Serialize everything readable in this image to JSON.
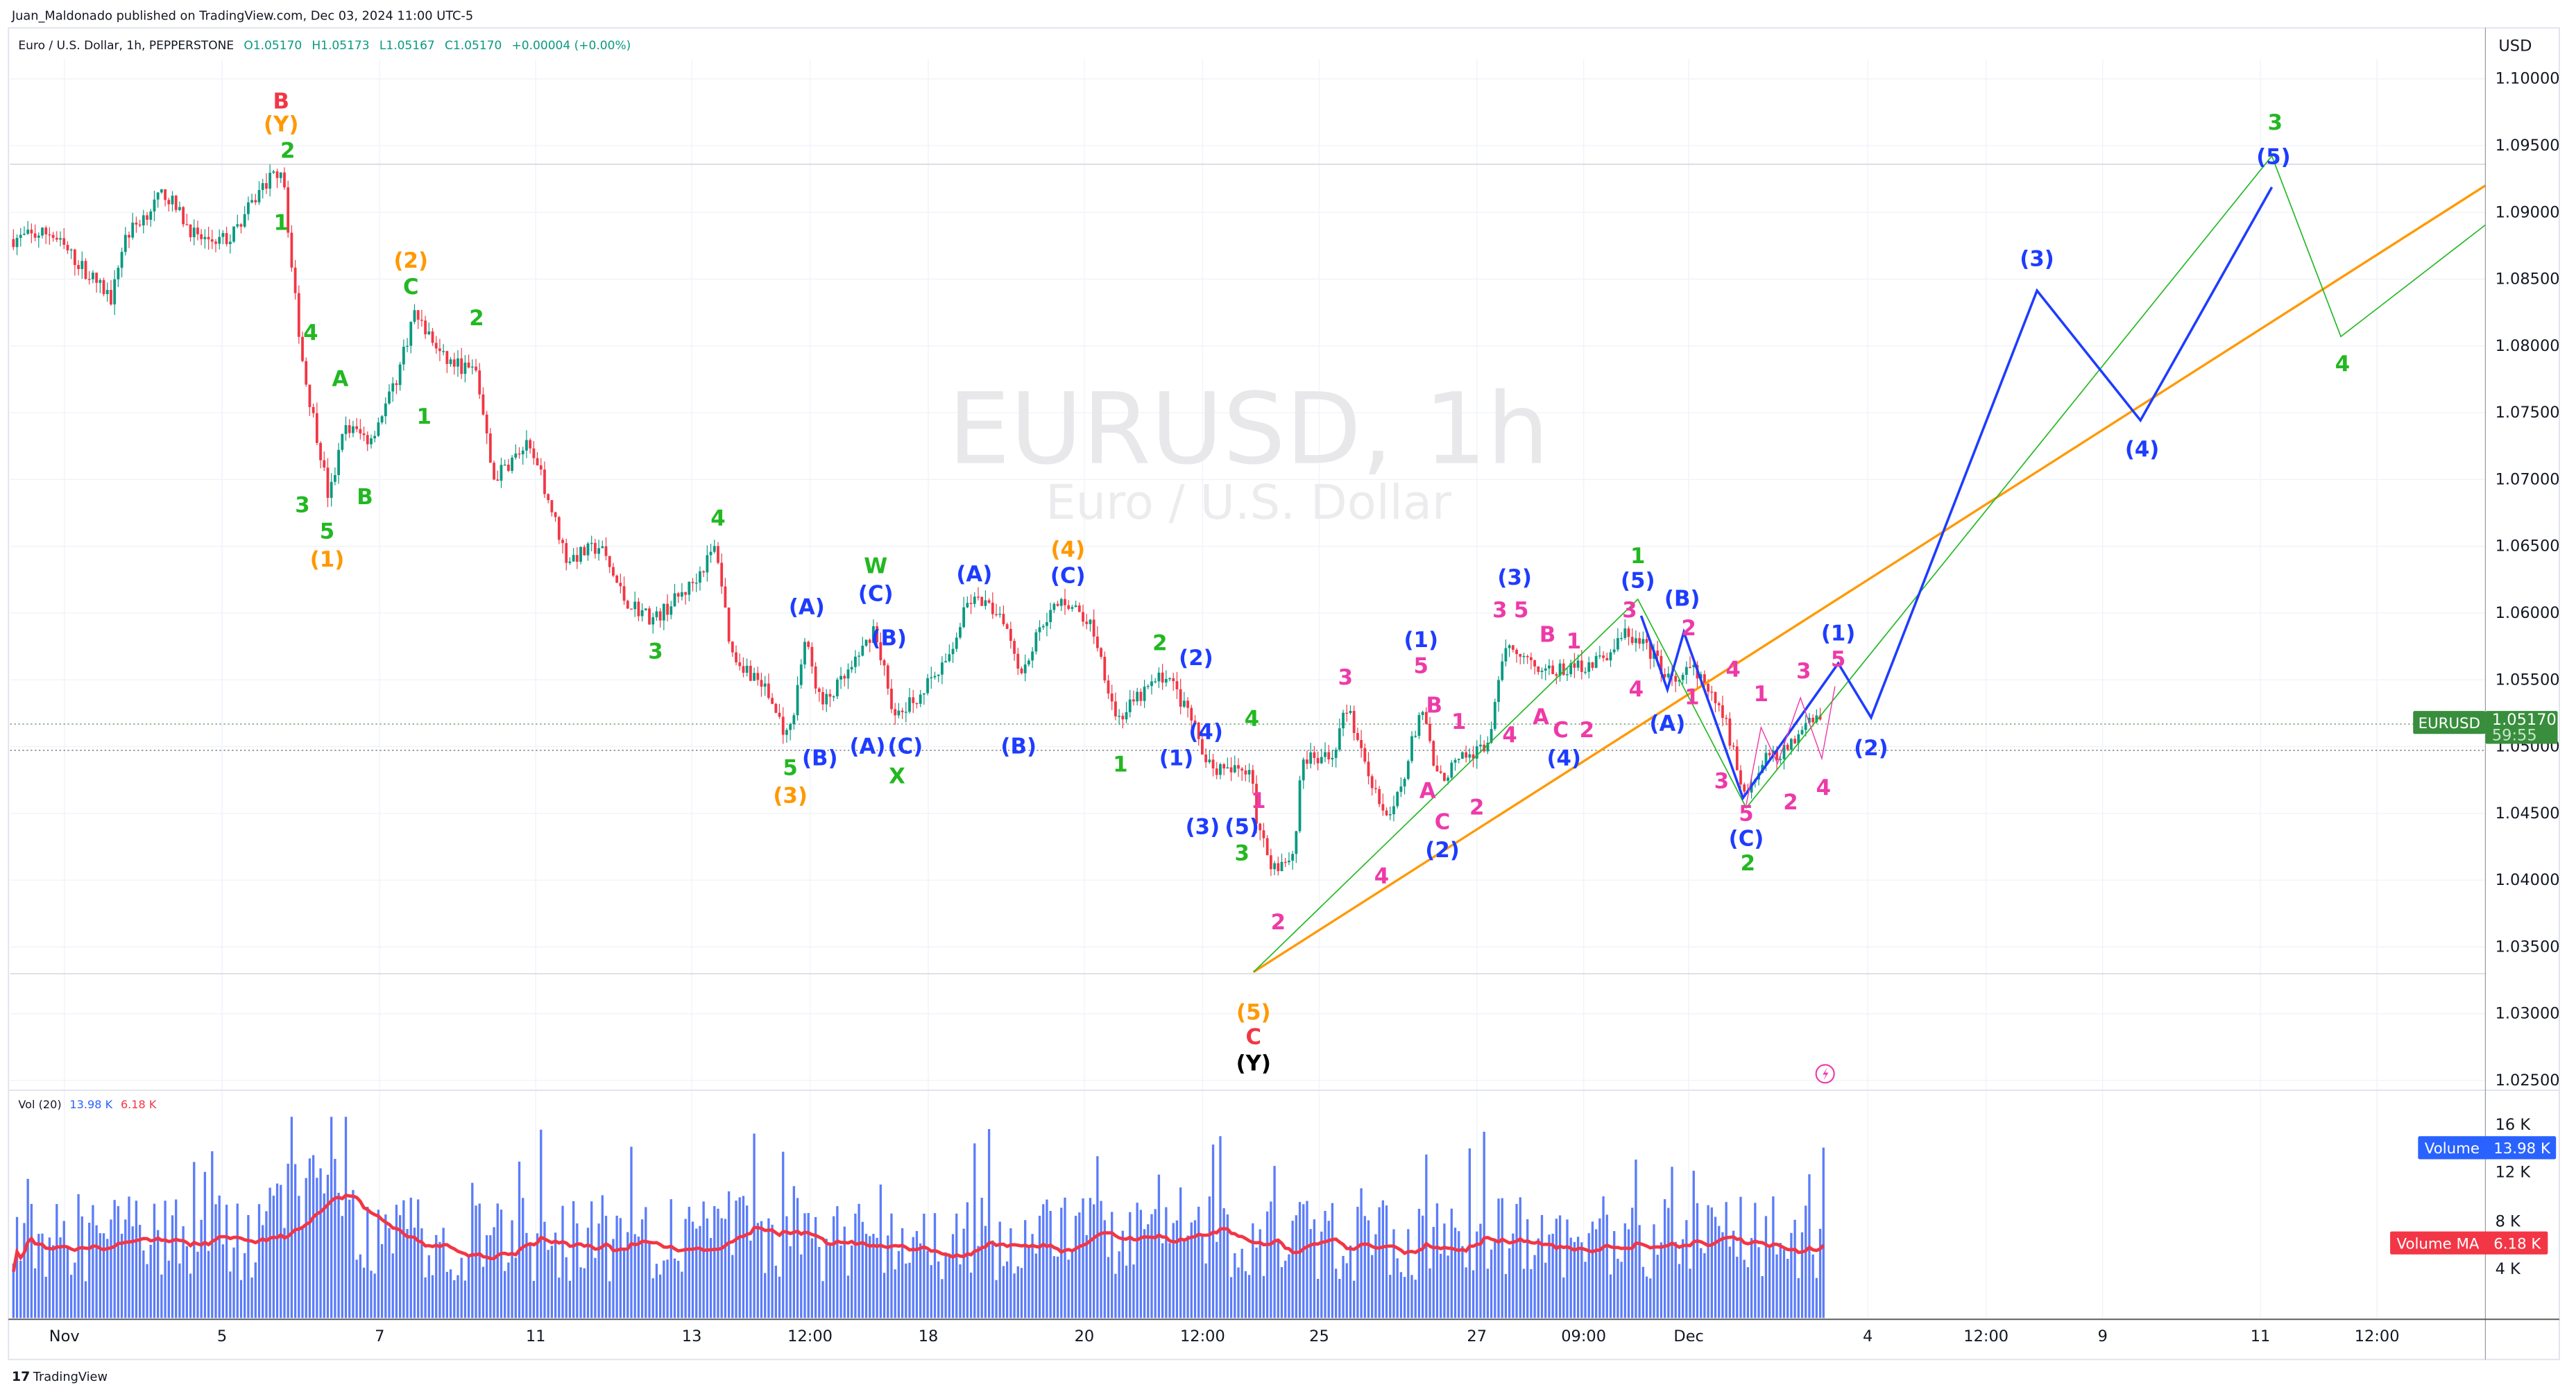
{
  "header": {
    "published": "Juan_Maldonado published on TradingView.com, Dec 03, 2024 11:00 UTC-5",
    "symbol_desc": "Euro / U.S. Dollar, 1h, PEPPERSTONE",
    "open": "O1.05170",
    "high": "H1.05173",
    "low": "L1.05167",
    "close": "C1.05170",
    "change": "+0.00004 (+0.00%)"
  },
  "watermark": {
    "symbol": "EURUSD, 1h",
    "name": "Euro / U.S. Dollar"
  },
  "price_axis": {
    "currency": "USD",
    "labels": [
      "1.10000",
      "1.09500",
      "1.09000",
      "1.08500",
      "1.08000",
      "1.07500",
      "1.07000",
      "1.06500",
      "1.06000",
      "1.05500",
      "1.05000",
      "1.04500",
      "1.04000",
      "1.03500",
      "1.03000",
      "1.02500"
    ]
  },
  "last_price_badge": {
    "symbol": "EURUSD",
    "price": "1.05170",
    "countdown": "59:55",
    "color": "#388e3c"
  },
  "time_axis": {
    "labels": [
      "Nov",
      "5",
      "7",
      "11",
      "13",
      "12:00",
      "18",
      "20",
      "12:00",
      "25",
      "27",
      "09:00",
      "Dec",
      "4",
      "12:00",
      "9",
      "11",
      "12:00"
    ]
  },
  "volume": {
    "legend_title": "Vol (20)",
    "legend_volume": "13.98 K",
    "legend_ma": "6.18 K",
    "axis_labels": [
      "16 K",
      "12 K",
      "8 K",
      "4 K"
    ],
    "badge_volume_label": "Volume",
    "badge_volume_value": "13.98 K",
    "badge_ma_label": "Volume MA",
    "badge_ma_value": "6.18 K",
    "bar_color": "#5b7cfa",
    "ma_color": "#f23645"
  },
  "footer": {
    "brand": "TradingView"
  },
  "colors": {
    "up": "#089981",
    "down": "#f23645",
    "red": "#f23645",
    "orange": "#ff9800",
    "green": "#22b822",
    "blue": "#1e3cff",
    "magenta": "#ee3aa8",
    "black": "#000000"
  },
  "wave_labels": [
    {
      "text": "B",
      "color": "red"
    },
    {
      "text": "(Y)",
      "color": "orange"
    },
    {
      "text": "2",
      "color": "green"
    },
    {
      "text": "1",
      "color": "green"
    },
    {
      "text": "4",
      "color": "green"
    },
    {
      "text": "A",
      "color": "green"
    },
    {
      "text": "(2)",
      "color": "orange"
    },
    {
      "text": "C",
      "color": "green"
    },
    {
      "text": "2",
      "color": "green"
    },
    {
      "text": "1",
      "color": "green"
    },
    {
      "text": "3",
      "color": "green"
    },
    {
      "text": "B",
      "color": "green"
    },
    {
      "text": "5",
      "color": "green"
    },
    {
      "text": "(1)",
      "color": "orange"
    },
    {
      "text": "4",
      "color": "green"
    },
    {
      "text": "3",
      "color": "green"
    },
    {
      "text": "(A)",
      "color": "blue"
    },
    {
      "text": "W",
      "color": "green"
    },
    {
      "text": "(C)",
      "color": "blue"
    },
    {
      "text": "(A)",
      "color": "blue"
    },
    {
      "text": "(4)",
      "color": "orange"
    },
    {
      "text": "(C)",
      "color": "blue"
    },
    {
      "text": "(B)",
      "color": "blue"
    },
    {
      "text": "2",
      "color": "green"
    },
    {
      "text": "(2)",
      "color": "blue"
    },
    {
      "text": "5",
      "color": "green"
    },
    {
      "text": "(3)",
      "color": "orange"
    },
    {
      "text": "(B)",
      "color": "blue"
    },
    {
      "text": "(A)",
      "color": "blue"
    },
    {
      "text": "(C)",
      "color": "blue"
    },
    {
      "text": "X",
      "color": "green"
    },
    {
      "text": "(B)",
      "color": "blue"
    },
    {
      "text": "1",
      "color": "green"
    },
    {
      "text": "(1)",
      "color": "blue"
    },
    {
      "text": "(4)",
      "color": "blue"
    },
    {
      "text": "4",
      "color": "green"
    },
    {
      "text": "(3)",
      "color": "blue"
    },
    {
      "text": "(5)",
      "color": "blue"
    },
    {
      "text": "3",
      "color": "green"
    },
    {
      "text": "1",
      "color": "magenta"
    },
    {
      "text": "2",
      "color": "magenta"
    },
    {
      "text": "(5)",
      "color": "orange"
    },
    {
      "text": "C",
      "color": "red"
    },
    {
      "text": "(Y)",
      "color": "black"
    },
    {
      "text": "3",
      "color": "magenta"
    },
    {
      "text": "(1)",
      "color": "blue"
    },
    {
      "text": "5",
      "color": "magenta"
    },
    {
      "text": "B",
      "color": "magenta"
    },
    {
      "text": "1",
      "color": "magenta"
    },
    {
      "text": "A",
      "color": "magenta"
    },
    {
      "text": "C",
      "color": "magenta"
    },
    {
      "text": "(2)",
      "color": "blue"
    },
    {
      "text": "2",
      "color": "magenta"
    },
    {
      "text": "4",
      "color": "magenta"
    },
    {
      "text": "4",
      "color": "magenta"
    },
    {
      "text": "(3)",
      "color": "blue"
    },
    {
      "text": "3",
      "color": "magenta"
    },
    {
      "text": "5",
      "color": "magenta"
    },
    {
      "text": "B",
      "color": "magenta"
    },
    {
      "text": "1",
      "color": "magenta"
    },
    {
      "text": "A",
      "color": "magenta"
    },
    {
      "text": "C",
      "color": "magenta"
    },
    {
      "text": "2",
      "color": "magenta"
    },
    {
      "text": "(4)",
      "color": "blue"
    },
    {
      "text": "1",
      "color": "green"
    },
    {
      "text": "(5)",
      "color": "blue"
    },
    {
      "text": "3",
      "color": "magenta"
    },
    {
      "text": "4",
      "color": "magenta"
    },
    {
      "text": "(B)",
      "color": "blue"
    },
    {
      "text": "2",
      "color": "magenta"
    },
    {
      "text": "1",
      "color": "magenta"
    },
    {
      "text": "(A)",
      "color": "blue"
    },
    {
      "text": "4",
      "color": "magenta"
    },
    {
      "text": "1",
      "color": "magenta"
    },
    {
      "text": "3",
      "color": "magenta"
    },
    {
      "text": "5",
      "color": "magenta"
    },
    {
      "text": "(C)",
      "color": "blue"
    },
    {
      "text": "2",
      "color": "green"
    },
    {
      "text": "2",
      "color": "magenta"
    },
    {
      "text": "3",
      "color": "magenta"
    },
    {
      "text": "4",
      "color": "magenta"
    },
    {
      "text": "(1)",
      "color": "blue"
    },
    {
      "text": "5",
      "color": "magenta"
    },
    {
      "text": "(2)",
      "color": "blue"
    },
    {
      "text": "(3)",
      "color": "blue"
    },
    {
      "text": "(4)",
      "color": "blue"
    },
    {
      "text": "(5)",
      "color": "blue"
    },
    {
      "text": "3",
      "color": "green"
    },
    {
      "text": "4",
      "color": "green"
    }
  ],
  "chart_data": {
    "type": "candlestick",
    "title": "EURUSD, 1h",
    "ylim": [
      1.02,
      1.105
    ],
    "y_ticks": [
      1.1,
      1.095,
      1.09,
      1.085,
      1.08,
      1.075,
      1.07,
      1.065,
      1.06,
      1.055,
      1.05,
      1.045,
      1.04,
      1.035,
      1.03,
      1.025
    ],
    "x_ticks": [
      "Nov",
      "5",
      "7",
      "11",
      "13",
      "12:00",
      "18",
      "20",
      "12:00",
      "25",
      "27",
      "09:00",
      "Dec",
      "4",
      "12:00",
      "9",
      "11",
      "12:00"
    ],
    "close_path_approx": [
      1.088,
      1.0885,
      1.0835,
      1.088,
      1.0915,
      1.088,
      1.088,
      1.092,
      1.0935,
      1.085,
      1.078,
      1.072,
      1.0685,
      1.074,
      1.073,
      1.077,
      1.0825,
      1.079,
      1.078,
      1.07,
      1.0725,
      1.07,
      1.064,
      1.065,
      1.061,
      1.0595,
      1.062,
      1.065,
      1.057,
      1.0545,
      1.0505,
      1.058,
      1.053,
      1.056,
      1.059,
      1.052,
      1.054,
      1.056,
      1.061,
      1.06,
      1.0555,
      1.0595,
      1.061,
      1.059,
      1.052,
      1.0545,
      1.0555,
      1.052,
      1.049,
      1.048,
      1.0485,
      1.044,
      1.041,
      1.042,
      1.049,
      1.049,
      1.053,
      1.0475,
      1.044,
      1.048,
      1.053,
      1.0475,
      1.049,
      1.05,
      1.058,
      1.0565,
      1.0555,
      1.056,
      1.0565,
      1.0585,
      1.057,
      1.0545,
      1.056,
      1.052,
      1.0465,
      1.049,
      1.05,
      1.0525,
      1.0517
    ],
    "last_close": 1.0517,
    "horizontal_levels": [
      1.094,
      1.0333
    ],
    "volume_ylim": [
      0,
      17000
    ],
    "last_volume": 13980,
    "last_volume_ma": 6180
  }
}
